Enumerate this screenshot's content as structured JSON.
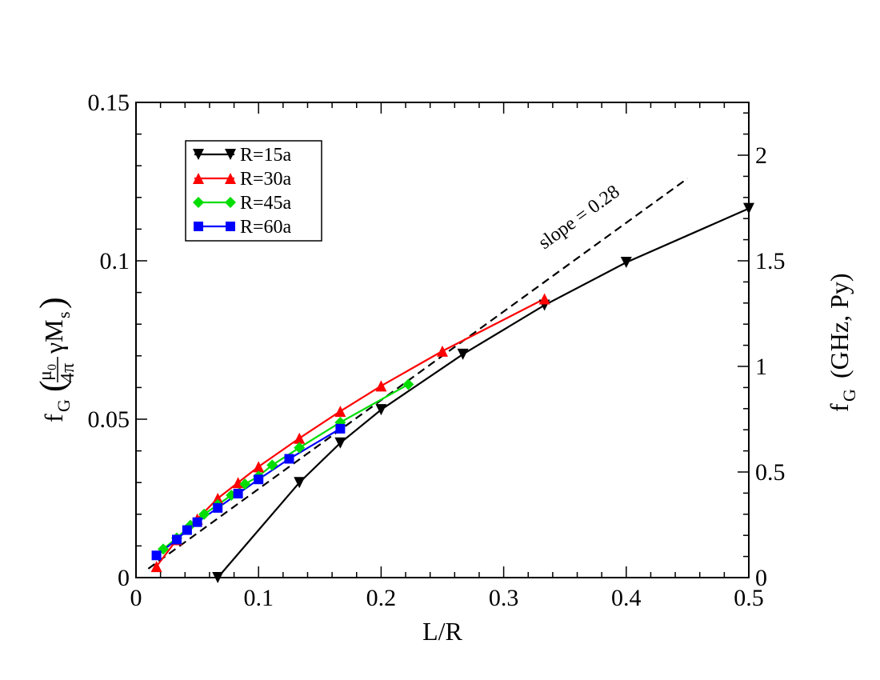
{
  "chart_data": {
    "type": "line",
    "xlabel": "L/R",
    "ylabel_left": {
      "base": "f",
      "sub": "G",
      "mu": "μ",
      "mu_sub": "0",
      "denom": "4π",
      "tail": "γM",
      "tail_sub": "s"
    },
    "ylabel_right": {
      "base": "f",
      "sub": "G",
      "tail": "(GHz, Py)"
    },
    "xlim": [
      0,
      0.5
    ],
    "ylim_left": [
      0,
      0.15
    ],
    "ylim_right": [
      0,
      2.25
    ],
    "x_ticks": [
      "0",
      "0.1",
      "0.2",
      "0.3",
      "0.4",
      "0.5"
    ],
    "x_tick_values": [
      0,
      0.1,
      0.2,
      0.3,
      0.4,
      0.5
    ],
    "y_left_ticks": [
      "0",
      "0.05",
      "0.1",
      "0.15"
    ],
    "y_left_tick_values": [
      0,
      0.05,
      0.1,
      0.15
    ],
    "y_right_ticks": [
      "0",
      "0.5",
      "1",
      "1.5",
      "2"
    ],
    "y_right_tick_values": [
      0,
      0.5,
      1,
      1.5,
      2
    ],
    "series": [
      {
        "name": "R=15a",
        "color": "#000000",
        "marker": "triangle-down",
        "x": [
          0.0667,
          0.1333,
          0.1667,
          0.2,
          0.2667,
          0.3333,
          0.4,
          0.5
        ],
        "y": [
          0.0,
          0.03,
          0.0425,
          0.053,
          0.0705,
          0.086,
          0.0995,
          0.1165
        ]
      },
      {
        "name": "R=30a",
        "color": "#ff0000",
        "marker": "triangle-up",
        "x": [
          0.0167,
          0.0333,
          0.05,
          0.0667,
          0.0833,
          0.1,
          0.1333,
          0.1667,
          0.2,
          0.25,
          0.3333
        ],
        "y": [
          0.0035,
          0.012,
          0.0185,
          0.025,
          0.03,
          0.035,
          0.044,
          0.0525,
          0.0605,
          0.0715,
          0.088
        ]
      },
      {
        "name": "R=45a",
        "color": "#00dd00",
        "marker": "diamond",
        "x": [
          0.0222,
          0.0333,
          0.0444,
          0.0556,
          0.0667,
          0.0778,
          0.0889,
          0.1,
          0.1111,
          0.1333,
          0.1667,
          0.2222
        ],
        "y": [
          0.009,
          0.0125,
          0.0165,
          0.02,
          0.023,
          0.026,
          0.0295,
          0.032,
          0.0355,
          0.041,
          0.049,
          0.061
        ]
      },
      {
        "name": "R=60a",
        "color": "#0000ff",
        "marker": "square",
        "x": [
          0.0167,
          0.0333,
          0.0417,
          0.05,
          0.0667,
          0.0833,
          0.1,
          0.125,
          0.1667
        ],
        "y": [
          0.007,
          0.012,
          0.015,
          0.0175,
          0.022,
          0.0265,
          0.031,
          0.0375,
          0.047
        ]
      }
    ],
    "reference_line": {
      "label": "slope = 0.28",
      "slope": 0.28,
      "x": [
        0.01,
        0.45
      ],
      "style": "dashed",
      "color": "#000000"
    },
    "legend_position": "top-left"
  }
}
